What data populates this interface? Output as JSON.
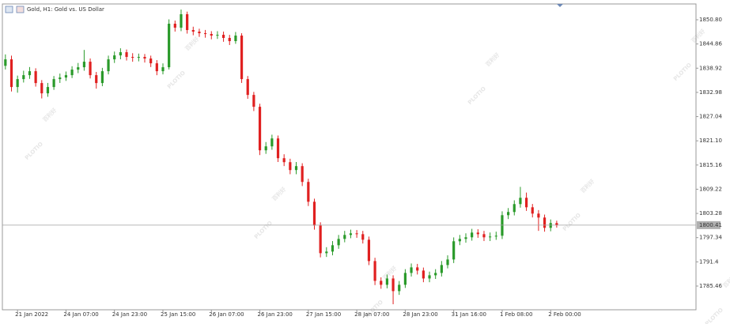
{
  "chart_data": {
    "type": "candlestick",
    "title": "Gold, H1:  Gold vs. US Dollar",
    "watermark": {
      "brand": "PLOTIO",
      "text": "百利好"
    },
    "up_color": "#2a9a2a",
    "down_color": "#e02020",
    "ylim": [
      1779.64,
      1854.68
    ],
    "yticks": [
      {
        "value": 1850.8,
        "label": "1850.80"
      },
      1844.86,
      1838.92,
      1832.98,
      1827.04,
      {
        "value": 1821.1,
        "label": "1821.10"
      },
      1815.16,
      1809.22,
      1803.28,
      1797.34,
      1791.4,
      1785.46
    ],
    "last_price": 1800.41,
    "categories": [
      null,
      null,
      "21 Jan 2022",
      null,
      null,
      null,
      null,
      null,
      null,
      null,
      "24 Jan 07:00",
      null,
      null,
      null,
      null,
      null,
      null,
      null,
      "24 Jan 23:00",
      null,
      null,
      null,
      null,
      null,
      null,
      null,
      "25 Jan 15:00",
      null,
      null,
      null,
      null,
      null,
      null,
      null,
      "26 Jan 07:00",
      null,
      null,
      null,
      null,
      null,
      null,
      null,
      "26 Jan 23:00",
      null,
      null,
      null,
      null,
      null,
      null,
      null,
      "27 Jan 15:00",
      null,
      null,
      null,
      null,
      null,
      null,
      null,
      "28 Jan 07:00",
      null,
      null,
      null,
      null,
      null,
      null,
      null,
      "28 Jan 23:00",
      null,
      null,
      null,
      null,
      null,
      null,
      null,
      "31 Jan 16:00",
      null,
      null,
      null,
      null,
      null,
      null,
      null,
      "1 Feb 08:00",
      null,
      null,
      null,
      null,
      null,
      null,
      null,
      "2 Feb 00:00",
      null
    ],
    "open": [
      1839.5,
      1841.09,
      1834.3,
      1836.24,
      1837.21,
      1838.18,
      1835.27,
      1832.75,
      1834.3,
      1836.24,
      1836.63,
      1837.21,
      1838.57,
      1839.15,
      1840.51,
      1837.21,
      1835.27,
      1838.18,
      1841.09,
      1842.06,
      1842.84,
      1841.68,
      1841.48,
      1841.68,
      1841.29,
      1840.12,
      1838.18,
      1839.15,
      1849.83,
      1848.86,
      1852.16,
      1848.28,
      1847.89,
      1847.5,
      1847.31,
      1846.92,
      1847.11,
      1846.34,
      1845.56,
      1846.92,
      1836.24,
      1832.36,
      1829.45,
      1818.77,
      1819.74,
      1821.68,
      1816.83,
      1815.86,
      1813.92,
      1814.89,
      1811.01,
      1806.15,
      1800.33,
      1793.53,
      1793.92,
      1795.48,
      1797.03,
      1798,
      1798.39,
      1798.19,
      1796.83,
      1791.59,
      1786.74,
      1785.77,
      1787.32,
      1784.22,
      1785.77,
      1788.68,
      1790.04,
      1789.26,
      1787.32,
      1788.1,
      1788.68,
      1790.62,
      1791.98,
      1796.45,
      1797.03,
      1797.42,
      1798.58,
      1798.19,
      1797.42,
      1797.61,
      1797.81,
      1802.85,
      1803.63,
      1805.57,
      1807.12,
      1804.79,
      1803.24,
      1802.27,
      1799.75,
      1800.91
    ],
    "high": [
      1842.3,
      1842,
      1837.1,
      1838.3,
      1839.2,
      1838.9,
      1836,
      1835.3,
      1837,
      1837.6,
      1838.1,
      1839.4,
      1840.2,
      1843.4,
      1841.3,
      1838,
      1839,
      1842,
      1843,
      1843.8,
      1843.5,
      1842.6,
      1842.5,
      1842.4,
      1842,
      1840.9,
      1840.1,
      1850.9,
      1850.6,
      1853.3,
      1852.8,
      1849.1,
      1848.6,
      1848.3,
      1848,
      1848,
      1847.9,
      1847.1,
      1847.8,
      1847.5,
      1837,
      1833.1,
      1830.2,
      1820.8,
      1822.6,
      1822.4,
      1817.8,
      1816.7,
      1815.9,
      1815.6,
      1811.8,
      1806.9,
      1801.1,
      1795,
      1796.5,
      1798,
      1799,
      1799.3,
      1799.2,
      1799,
      1797.6,
      1792.4,
      1787.6,
      1788.3,
      1788.1,
      1786.7,
      1789.6,
      1791,
      1790.9,
      1790,
      1789,
      1789.6,
      1791.6,
      1793,
      1797.4,
      1798,
      1798.4,
      1799.5,
      1799.4,
      1799,
      1798.6,
      1798.8,
      1803.8,
      1804.6,
      1806.5,
      1809.8,
      1808.4,
      1805.6,
      1804.1,
      1803,
      1801.8,
      1801.5
    ],
    "low": [
      1838.6,
      1833.2,
      1832.9,
      1835.4,
      1836.3,
      1834.4,
      1831.5,
      1831.9,
      1833.6,
      1835.3,
      1835.8,
      1836.5,
      1837.7,
      1838.3,
      1836.4,
      1833.9,
      1834.5,
      1837.4,
      1840.2,
      1841.1,
      1840.8,
      1840.5,
      1840.6,
      1840.3,
      1839.2,
      1837.2,
      1837.4,
      1838.6,
      1847.9,
      1848,
      1847.4,
      1847,
      1846.6,
      1846.4,
      1846,
      1846.1,
      1845.4,
      1844.6,
      1844.9,
      1835.3,
      1831.4,
      1828.4,
      1817.6,
      1817.9,
      1818.9,
      1815.9,
      1814.9,
      1812.9,
      1812.9,
      1810,
      1805.1,
      1799.3,
      1792.5,
      1792.6,
      1793,
      1794.6,
      1796.2,
      1797.2,
      1797.3,
      1795.9,
      1790.6,
      1785.7,
      1784.8,
      1784.9,
      1781,
      1783.3,
      1785,
      1787.8,
      1788.3,
      1786.4,
      1786.4,
      1787.2,
      1787.8,
      1789.8,
      1791.1,
      1795.5,
      1796.1,
      1796.6,
      1797.3,
      1796.5,
      1796.5,
      1796.8,
      1797,
      1801.9,
      1802.8,
      1804.7,
      1803.9,
      1802.3,
      1799,
      1798.8,
      1798.9,
      1799.8
    ],
    "close": [
      1841.09,
      1834.3,
      1836.24,
      1837.21,
      1838.18,
      1835.27,
      1832.75,
      1834.3,
      1836.24,
      1836.63,
      1837.21,
      1838.57,
      1839.15,
      1840.51,
      1837.21,
      1835.27,
      1838.18,
      1841.09,
      1842.06,
      1842.84,
      1841.68,
      1841.48,
      1841.68,
      1841.29,
      1840.12,
      1838.18,
      1839.15,
      1849.83,
      1848.86,
      1852.16,
      1848.28,
      1847.89,
      1847.5,
      1847.31,
      1846.92,
      1847.11,
      1846.34,
      1845.56,
      1846.92,
      1836.24,
      1832.36,
      1829.45,
      1818.77,
      1819.74,
      1821.68,
      1816.83,
      1815.86,
      1813.92,
      1814.89,
      1811.01,
      1806.15,
      1800.33,
      1793.53,
      1793.92,
      1795.48,
      1797.03,
      1798,
      1798.39,
      1798.19,
      1796.83,
      1791.59,
      1786.74,
      1785.77,
      1787.32,
      1784.22,
      1785.77,
      1788.68,
      1790.04,
      1789.26,
      1787.32,
      1788.1,
      1788.68,
      1790.62,
      1791.98,
      1796.45,
      1797.03,
      1797.42,
      1798.58,
      1798.19,
      1797.42,
      1797.61,
      1797.81,
      1802.85,
      1803.63,
      1805.57,
      1807.12,
      1804.79,
      1803.24,
      1802.27,
      1799.75,
      1800.91,
      1800.41
    ]
  }
}
